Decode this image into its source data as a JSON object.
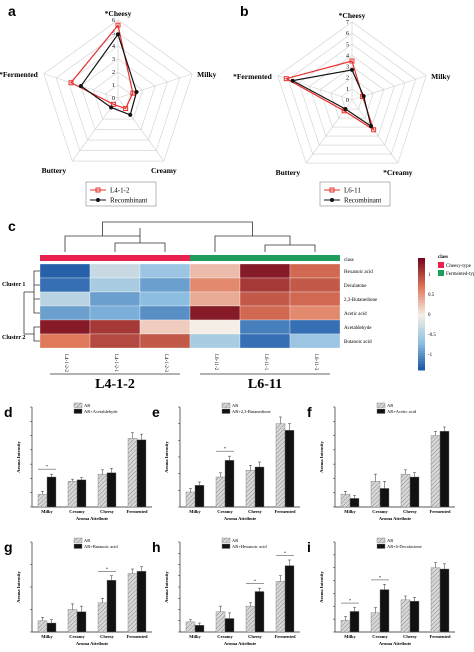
{
  "chart_data": [
    {
      "panel": "a",
      "type": "radar",
      "axes": [
        "Cheesy",
        "Milky",
        "Creamy",
        "Buttery",
        "Fermented"
      ],
      "axis_marks": [
        "*Cheesy",
        "",
        "",
        "",
        "*Fermented"
      ],
      "radial_ticks": [
        "0",
        "1",
        "2",
        "3",
        "4",
        "5",
        "6"
      ],
      "rmax": 6,
      "series": [
        {
          "name": "L4-1-2",
          "color": "#e8322e",
          "marker": "square",
          "values": [
            5.6,
            1.2,
            1.0,
            0.6,
            3.8
          ]
        },
        {
          "name": "Recombinant",
          "color": "#111111",
          "marker": "circle",
          "values": [
            4.9,
            1.5,
            1.6,
            0.9,
            3.0
          ]
        }
      ]
    },
    {
      "panel": "b",
      "type": "radar",
      "axes": [
        "Cheesy",
        "Milky",
        "Creamy",
        "Buttery",
        "Fermented"
      ],
      "axis_marks": [
        "*Cheesy",
        "",
        "*",
        "",
        "*Fermented"
      ],
      "radial_ticks": [
        "0",
        "1",
        "2",
        "3",
        "4",
        "5",
        "6",
        "7"
      ],
      "rmax": 7,
      "series": [
        {
          "name": "L6-11",
          "color": "#e8322e",
          "marker": "square",
          "values": [
            3.5,
            1.0,
            3.3,
            1.2,
            6.2
          ]
        },
        {
          "name": "Recombinant",
          "color": "#111111",
          "marker": "circle",
          "values": [
            2.7,
            1.1,
            2.9,
            1.0,
            5.6
          ]
        }
      ]
    },
    {
      "panel": "c",
      "type": "heatmap",
      "columns": [
        "L4-1-2-2",
        "L4-1-2-1",
        "L4-1-2-3",
        "L6-11-2",
        "L6-11-1",
        "L6-11-3"
      ],
      "column_classes": [
        "Cheesy-type",
        "Cheesy-type",
        "Cheesy-type",
        "Fermented-type",
        "Fermented-type",
        "Fermented-type"
      ],
      "rows": [
        "Hexanoic acid",
        "Decalatone",
        "2,3-Butanedione",
        "Acetic acid",
        "Acetaldehyde",
        "Butanoic acid"
      ],
      "row_clusters": [
        "Cluster 1",
        "Cluster 2"
      ],
      "class_label": "class",
      "groups": [
        "L4-1-2",
        "L6-11"
      ],
      "legend_title": "class",
      "legend_classes": [
        {
          "name": "Cheesy-type",
          "color": "#e8214f"
        },
        {
          "name": "Fermented-type",
          "color": "#1f9e5b"
        }
      ],
      "color_ticks": [
        "1",
        "0.5",
        "0",
        "-0.5",
        "-1"
      ],
      "values": [
        [
          -1.3,
          -0.3,
          -0.6,
          0.3,
          1.3,
          0.8
        ],
        [
          -1.2,
          -0.5,
          -0.9,
          0.6,
          1.1,
          0.9
        ],
        [
          -0.4,
          -0.9,
          -0.7,
          0.4,
          0.9,
          0.8
        ],
        [
          -0.9,
          -0.8,
          -1.0,
          1.3,
          0.8,
          0.6
        ],
        [
          1.3,
          1.1,
          0.2,
          0.0,
          -1.1,
          -1.2
        ],
        [
          0.7,
          1.0,
          0.9,
          -0.5,
          -1.2,
          -0.6
        ]
      ]
    },
    {
      "panel": "d",
      "type": "bar",
      "categories": [
        "Milky",
        "Creamy",
        "Cheesy",
        "Fermented"
      ],
      "xlabel": "Aroma Attribute",
      "ylabel": "Aroma Intensity",
      "ylim": [
        0,
        7
      ],
      "series": [
        {
          "name": "AR",
          "values": [
            0.9,
            1.8,
            2.3,
            4.8
          ]
        },
        {
          "name": "AR+Acetaldehyde",
          "values": [
            2.1,
            1.9,
            2.4,
            4.7
          ]
        }
      ],
      "errors": [
        0.2,
        0.15,
        0.3,
        0.4
      ],
      "sig_marks": [
        "*",
        "",
        "",
        ""
      ]
    },
    {
      "panel": "e",
      "type": "bar",
      "categories": [
        "Milky",
        "Creamy",
        "Cheesy",
        "Fermented"
      ],
      "xlabel": "Aroma Attribute",
      "ylabel": "Aroma Intensity",
      "ylim": [
        0,
        6
      ],
      "series": [
        {
          "name": "AR",
          "values": [
            0.9,
            1.8,
            2.2,
            5.0
          ]
        },
        {
          "name": "AR+2,3-Butanedione",
          "values": [
            1.3,
            2.8,
            2.4,
            4.6
          ]
        }
      ],
      "errors": [
        0.2,
        0.25,
        0.3,
        0.4
      ],
      "sig_marks": [
        "",
        "*",
        "",
        ""
      ]
    },
    {
      "panel": "f",
      "type": "bar",
      "categories": [
        "Milky",
        "Creamy",
        "Cheesy",
        "Fermented"
      ],
      "xlabel": "Aroma Attribute",
      "ylabel": "Aroma Intensity",
      "ylim": [
        0,
        7
      ],
      "series": [
        {
          "name": "AR",
          "values": [
            0.9,
            1.8,
            2.3,
            5.0
          ]
        },
        {
          "name": "AR+Acetic acid",
          "values": [
            0.6,
            1.3,
            2.1,
            5.3
          ]
        }
      ],
      "errors": [
        0.2,
        0.5,
        0.3,
        0.3
      ],
      "sig_marks": [
        "",
        "",
        "",
        ""
      ]
    },
    {
      "panel": "g",
      "type": "bar",
      "categories": [
        "Milky",
        "Creamy",
        "Cheesy",
        "Fermented"
      ],
      "xlabel": "Aroma Attribute",
      "ylabel": "Aroma Intensity",
      "ylim": [
        0,
        4
      ],
      "series": [
        {
          "name": "AR",
          "values": [
            0.5,
            1.0,
            1.3,
            2.6
          ]
        },
        {
          "name": "AR+Butanoic acid",
          "values": [
            0.4,
            0.9,
            2.3,
            2.7
          ]
        }
      ],
      "errors": [
        0.15,
        0.25,
        0.2,
        0.2
      ],
      "sig_marks": [
        "",
        "",
        "*",
        ""
      ]
    },
    {
      "panel": "h",
      "type": "bar",
      "categories": [
        "Milky",
        "Creamy",
        "Cheesy",
        "Fermented"
      ],
      "xlabel": "Aroma Attribute",
      "ylabel": "Aroma Intensity",
      "ylim": [
        0,
        8
      ],
      "series": [
        {
          "name": "AR",
          "values": [
            0.9,
            1.8,
            2.3,
            4.5
          ]
        },
        {
          "name": "AR+Hexanoic acid",
          "values": [
            0.6,
            1.2,
            3.6,
            5.9
          ]
        }
      ],
      "errors": [
        0.2,
        0.5,
        0.3,
        0.5
      ],
      "sig_marks": [
        "",
        "",
        "*",
        "*"
      ]
    },
    {
      "panel": "i",
      "type": "bar",
      "categories": [
        "Milky",
        "Creamy",
        "Cheesy",
        "Fermented"
      ],
      "xlabel": "Aroma Attribute",
      "ylabel": "Aroma Intensity",
      "ylim": [
        0,
        7
      ],
      "series": [
        {
          "name": "AR",
          "values": [
            0.9,
            1.5,
            2.5,
            5.0
          ]
        },
        {
          "name": "AR+δ-Decalactone",
          "values": [
            1.6,
            3.3,
            2.4,
            4.9
          ]
        }
      ],
      "errors": [
        0.3,
        0.4,
        0.3,
        0.4
      ],
      "sig_marks": [
        "*",
        "*",
        "",
        ""
      ]
    }
  ]
}
